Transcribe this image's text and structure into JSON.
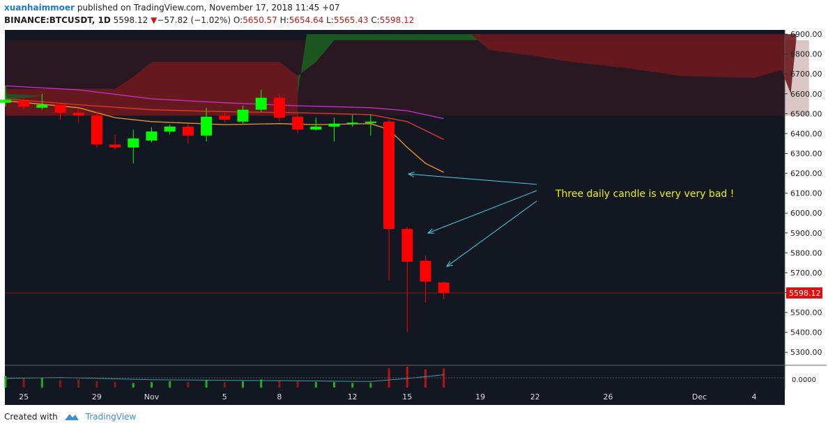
{
  "header": {
    "author": "xuanhaimmoer",
    "published_text": "published on TradingView.com, November 17, 2018 11:45 +07",
    "symbol": "BINANCE:BTCUSDT, 1D",
    "last_price": "5598.12",
    "change": "−57.82 (−1.02%)",
    "o_label": "O:",
    "o_value": "5650.57",
    "h_label": "H:",
    "h_value": "5654.64",
    "l_label": "L:",
    "l_value": "5565.43",
    "c_label": "C:",
    "c_value": "5598.12"
  },
  "footer": {
    "created_with": "Created with",
    "brand": "TradingView"
  },
  "colors": {
    "background": "#131722",
    "up": "#00ff00",
    "down": "#ff0000",
    "cloud_red": "#6b1a1e",
    "cloud_green": "#1c5a22",
    "ma_magenta": "#c832c8",
    "ma_red": "#e23a2a",
    "ma_orange": "#f0962a",
    "arrow": "#4dd0e1",
    "annotation": "#f0f000",
    "price_tag": "#e01010"
  },
  "chart_data": {
    "type": "candlestick",
    "y_ticks": [
      "6900.00",
      "6800.00",
      "6700.00",
      "6600.00",
      "6500.00",
      "6400.00",
      "6300.00",
      "6200.00",
      "6100.00",
      "6000.00",
      "5900.00",
      "5800.00",
      "5700.00",
      "5600.00",
      "5500.00",
      "5400.00",
      "5300.00"
    ],
    "ylim": [
      5250,
      6920
    ],
    "x_ticks": [
      {
        "label": "25",
        "day": -7
      },
      {
        "label": "29",
        "day": -3
      },
      {
        "label": "Nov",
        "day": 0
      },
      {
        "label": "5",
        "day": 4
      },
      {
        "label": "8",
        "day": 7
      },
      {
        "label": "12",
        "day": 11
      },
      {
        "label": "15",
        "day": 14
      },
      {
        "label": "19",
        "day": 18
      },
      {
        "label": "22",
        "day": 21
      },
      {
        "label": "26",
        "day": 25
      },
      {
        "label": "Dec",
        "day": 30
      },
      {
        "label": "4",
        "day": 33
      }
    ],
    "candles": [
      {
        "date": "Oct 24",
        "o": 6555,
        "h": 6640,
        "l": 6535,
        "c": 6570
      },
      {
        "date": "Oct 25",
        "o": 6565,
        "h": 6580,
        "l": 6520,
        "c": 6535
      },
      {
        "date": "Oct 26",
        "o": 6530,
        "h": 6600,
        "l": 6520,
        "c": 6545
      },
      {
        "date": "Oct 27",
        "o": 6545,
        "h": 6560,
        "l": 6470,
        "c": 6505
      },
      {
        "date": "Oct 28",
        "o": 6505,
        "h": 6525,
        "l": 6455,
        "c": 6490
      },
      {
        "date": "Oct 29",
        "o": 6490,
        "h": 6510,
        "l": 6330,
        "c": 6345
      },
      {
        "date": "Oct 30",
        "o": 6345,
        "h": 6395,
        "l": 6320,
        "c": 6330
      },
      {
        "date": "Oct 31",
        "o": 6330,
        "h": 6420,
        "l": 6250,
        "c": 6375
      },
      {
        "date": "Nov 1",
        "o": 6365,
        "h": 6430,
        "l": 6355,
        "c": 6410
      },
      {
        "date": "Nov 2",
        "o": 6410,
        "h": 6445,
        "l": 6395,
        "c": 6435
      },
      {
        "date": "Nov 3",
        "o": 6435,
        "h": 6450,
        "l": 6350,
        "c": 6390
      },
      {
        "date": "Nov 4",
        "o": 6390,
        "h": 6530,
        "l": 6360,
        "c": 6485
      },
      {
        "date": "Nov 5",
        "o": 6490,
        "h": 6505,
        "l": 6455,
        "c": 6470
      },
      {
        "date": "Nov 6",
        "o": 6460,
        "h": 6540,
        "l": 6450,
        "c": 6520
      },
      {
        "date": "Nov 7",
        "o": 6520,
        "h": 6620,
        "l": 6510,
        "c": 6580
      },
      {
        "date": "Nov 8",
        "o": 6580,
        "h": 6600,
        "l": 6460,
        "c": 6480
      },
      {
        "date": "Nov 9",
        "o": 6485,
        "h": 6500,
        "l": 6400,
        "c": 6420
      },
      {
        "date": "Nov 10",
        "o": 6420,
        "h": 6480,
        "l": 6415,
        "c": 6435
      },
      {
        "date": "Nov 11",
        "o": 6435,
        "h": 6480,
        "l": 6360,
        "c": 6450
      },
      {
        "date": "Nov 12",
        "o": 6450,
        "h": 6495,
        "l": 6435,
        "c": 6455
      },
      {
        "date": "Nov 13",
        "o": 6455,
        "h": 6495,
        "l": 6390,
        "c": 6460
      },
      {
        "date": "Nov 14",
        "o": 6460,
        "h": 6470,
        "l": 5660,
        "c": 5920
      },
      {
        "date": "Nov 15",
        "o": 5920,
        "h": 5930,
        "l": 5400,
        "c": 5755
      },
      {
        "date": "Nov 16",
        "o": 5760,
        "h": 5785,
        "l": 5550,
        "c": 5655
      },
      {
        "date": "Nov 17",
        "o": 5650.57,
        "h": 5654.64,
        "l": 5565.43,
        "c": 5598.12
      }
    ],
    "last_price": 5598.12,
    "volume_axis_label": "0.0000",
    "annotation": "Three daily candle is very very bad !"
  }
}
